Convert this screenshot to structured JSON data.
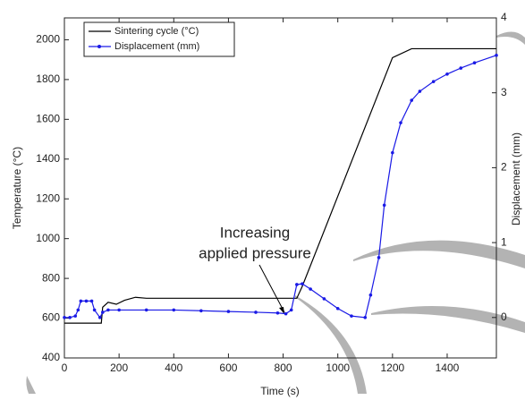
{
  "chart_data": {
    "type": "line",
    "x_label": "Time (s)",
    "y_label": "Temperature (°C)",
    "y2_label": "Displacement (mm)",
    "annotation": [
      "Increasing",
      "applied pressure"
    ],
    "xlim": [
      0,
      1580
    ],
    "xticks": [
      0,
      200,
      400,
      600,
      800,
      1000,
      1200,
      1400
    ],
    "ylim": [
      400,
      2110
    ],
    "yticks": [
      400,
      600,
      800,
      1000,
      1200,
      1400,
      1600,
      1800,
      2000
    ],
    "y2lim": [
      -0.54,
      4
    ],
    "y2ticks": [
      0,
      1,
      2,
      3,
      4
    ],
    "legend": "upper left",
    "series": [
      {
        "name": "Sintering cycle (°C)",
        "color": "#000000",
        "markers": false,
        "x": [
          0,
          135,
          140,
          160,
          190,
          220,
          260,
          300,
          850,
          870,
          1200,
          1270,
          1580
        ],
        "values": [
          575,
          575,
          655,
          680,
          670,
          690,
          705,
          700,
          700,
          760,
          1910,
          1955,
          1955
        ]
      },
      {
        "name": "Displacement (mm)",
        "color": "#1a1ae6",
        "axis": "y2",
        "markers": true,
        "x": [
          0,
          20,
          40,
          50,
          60,
          80,
          100,
          110,
          130,
          140,
          160,
          200,
          300,
          400,
          500,
          600,
          700,
          780,
          810,
          830,
          850,
          870,
          900,
          950,
          1000,
          1050,
          1100,
          1120,
          1150,
          1170,
          1200,
          1230,
          1270,
          1300,
          1350,
          1400,
          1450,
          1500,
          1580
        ],
        "values": [
          0,
          0,
          0.02,
          0.1,
          0.22,
          0.22,
          0.22,
          0.1,
          0,
          0.07,
          0.1,
          0.1,
          0.1,
          0.1,
          0.09,
          0.08,
          0.07,
          0.06,
          0.05,
          0.1,
          0.44,
          0.45,
          0.38,
          0.25,
          0.12,
          0.02,
          0,
          0.3,
          0.8,
          1.5,
          2.2,
          2.6,
          2.9,
          3.02,
          3.15,
          3.25,
          3.33,
          3.4,
          3.5
        ]
      }
    ]
  }
}
